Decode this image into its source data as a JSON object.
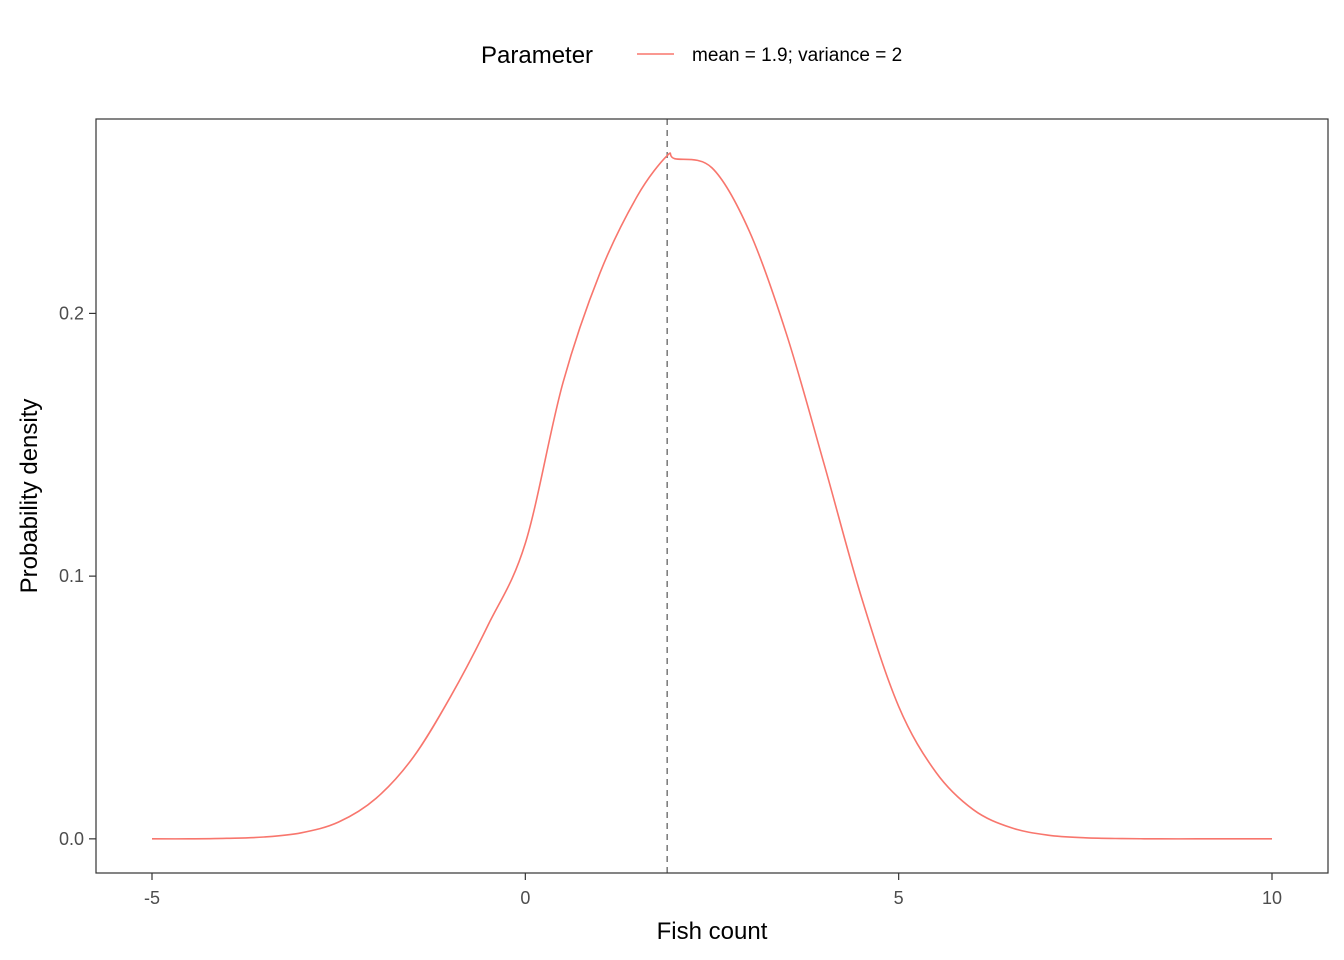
{
  "chart_data": {
    "type": "line",
    "xlabel": "Fish count",
    "ylabel": "Probability density",
    "xlim": [
      -5.75,
      10.75
    ],
    "ylim": [
      -0.013,
      0.274
    ],
    "x_ticks": [
      {
        "value": -5,
        "label": "-5"
      },
      {
        "value": 0,
        "label": "0"
      },
      {
        "value": 5,
        "label": "5"
      },
      {
        "value": 10,
        "label": "10"
      }
    ],
    "y_ticks": [
      {
        "value": 0.0,
        "label": "0.0"
      },
      {
        "value": 0.1,
        "label": "0.1"
      },
      {
        "value": 0.2,
        "label": "0.2"
      }
    ],
    "legend": {
      "title": "Parameter",
      "position": "top",
      "entries": [
        {
          "label": "mean = 1.9; variance = 2",
          "color": "#F8766D"
        }
      ]
    },
    "series": [
      {
        "name": "mean = 1.9; variance = 2",
        "color": "#F8766D",
        "x": [
          -5,
          -4.5,
          -4,
          -3.5,
          -3,
          -2.5,
          -2,
          -1.5,
          -1,
          -0.5,
          0,
          0.5,
          1,
          1.5,
          1.9,
          2,
          2.5,
          3,
          3.5,
          4,
          4.5,
          5,
          5.5,
          6,
          6.5,
          7,
          7.5,
          8,
          8.5,
          9,
          9.5,
          10
        ],
        "y": [
          0.0,
          0.0,
          0.0002,
          0.0007,
          0.0023,
          0.0064,
          0.0154,
          0.0311,
          0.0542,
          0.0813,
          0.1125,
          0.1732,
          0.2154,
          0.2447,
          0.2601,
          0.2589,
          0.2554,
          0.2313,
          0.1919,
          0.1428,
          0.0921,
          0.0504,
          0.0253,
          0.0111,
          0.0043,
          0.0014,
          0.0004,
          0.0001,
          0.0,
          0.0,
          0.0,
          0.0
        ]
      }
    ],
    "reference_lines": [
      {
        "axis": "x",
        "value": 1.9,
        "style": "dashed",
        "color": "#808080"
      }
    ],
    "grid": false,
    "panel_border": true
  }
}
